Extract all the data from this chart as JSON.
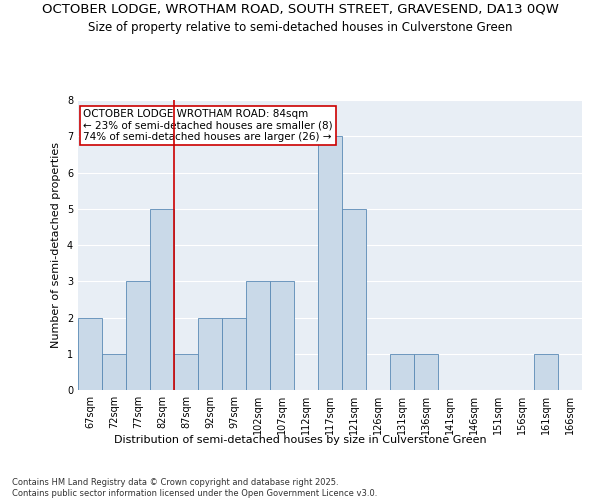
{
  "title_line1": "OCTOBER LODGE, WROTHAM ROAD, SOUTH STREET, GRAVESEND, DA13 0QW",
  "title_line2": "Size of property relative to semi-detached houses in Culverstone Green",
  "xlabel": "Distribution of semi-detached houses by size in Culverstone Green",
  "ylabel": "Number of semi-detached properties",
  "categories": [
    "67sqm",
    "72sqm",
    "77sqm",
    "82sqm",
    "87sqm",
    "92sqm",
    "97sqm",
    "102sqm",
    "107sqm",
    "112sqm",
    "117sqm",
    "121sqm",
    "126sqm",
    "131sqm",
    "136sqm",
    "141sqm",
    "146sqm",
    "151sqm",
    "156sqm",
    "161sqm",
    "166sqm"
  ],
  "values": [
    2,
    1,
    3,
    5,
    1,
    2,
    2,
    3,
    3,
    0,
    7,
    5,
    0,
    1,
    1,
    0,
    0,
    0,
    0,
    1,
    0
  ],
  "bar_color": "#c9d9e8",
  "bar_edge_color": "#5a8ab5",
  "subject_line_index": 3,
  "subject_line_color": "#cc0000",
  "annotation_text": "OCTOBER LODGE WROTHAM ROAD: 84sqm\n← 23% of semi-detached houses are smaller (8)\n74% of semi-detached houses are larger (26) →",
  "annotation_box_color": "#ffffff",
  "annotation_box_edge": "#cc0000",
  "ylim": [
    0,
    8
  ],
  "yticks": [
    0,
    1,
    2,
    3,
    4,
    5,
    6,
    7,
    8
  ],
  "background_color": "#e8eef5",
  "footer_text": "Contains HM Land Registry data © Crown copyright and database right 2025.\nContains public sector information licensed under the Open Government Licence v3.0.",
  "title_fontsize": 9.5,
  "subtitle_fontsize": 8.5,
  "axis_label_fontsize": 8,
  "tick_fontsize": 7,
  "annotation_fontsize": 7.5,
  "footer_fontsize": 6
}
